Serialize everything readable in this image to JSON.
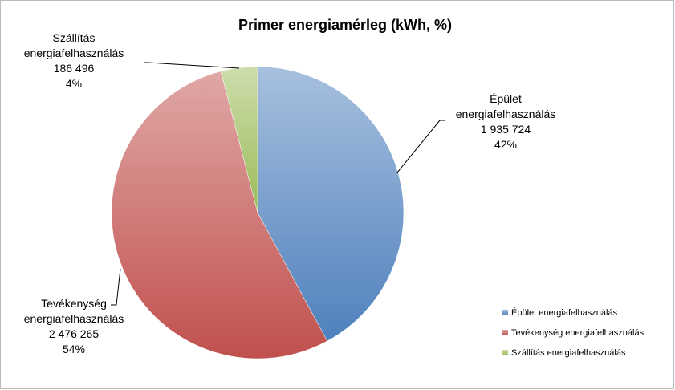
{
  "chart_data": {
    "type": "pie",
    "title": "Primer energiamérleg (kWh, %)",
    "categories": [
      "Épület energiafelhasználás",
      "Tevékenység energiafelhasználás",
      "Szállítás energiafelhasználás"
    ],
    "values": [
      1935724,
      2476265,
      186496
    ],
    "value_labels": [
      "1 935 724",
      "2 476 265",
      "186 496"
    ],
    "percentages": [
      42,
      54,
      4
    ],
    "percentage_labels": [
      "42%",
      "54%",
      "4%"
    ],
    "colors": [
      "#4f81bd",
      "#c0504d",
      "#9bbb59"
    ],
    "legend": "right"
  }
}
